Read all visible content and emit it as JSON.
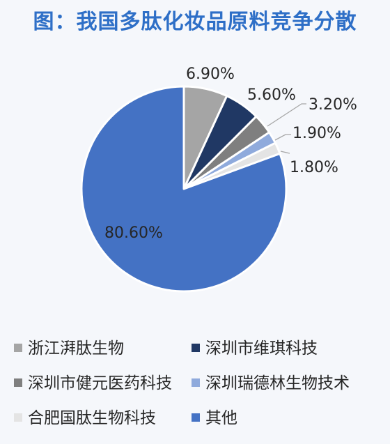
{
  "title": "图：我国多肽化妆品原料竞争分散",
  "chart_data": {
    "type": "pie",
    "title": "图：我国多肽化妆品原料竞争分散",
    "slices": [
      {
        "label": "浙江湃肽生物",
        "value": 6.9,
        "display": "6.90%",
        "color": "#a5a5a5"
      },
      {
        "label": "深圳市维琪科技",
        "value": 5.6,
        "display": "5.60%",
        "color": "#203864"
      },
      {
        "label": "深圳市健元医药科技",
        "value": 3.2,
        "display": "3.20%",
        "color": "#7f7f7f"
      },
      {
        "label": "深圳瑞德林生物技术",
        "value": 1.9,
        "display": "1.90%",
        "color": "#8faadc"
      },
      {
        "label": "合肥国肽生物科技",
        "value": 1.8,
        "display": "1.80%",
        "color": "#e4e4e4"
      },
      {
        "label": "其他",
        "value": 80.6,
        "display": "80.60%",
        "color": "#4472c4"
      }
    ],
    "start_angle_deg": 0,
    "direction": "clockwise",
    "legend_position": "bottom"
  }
}
